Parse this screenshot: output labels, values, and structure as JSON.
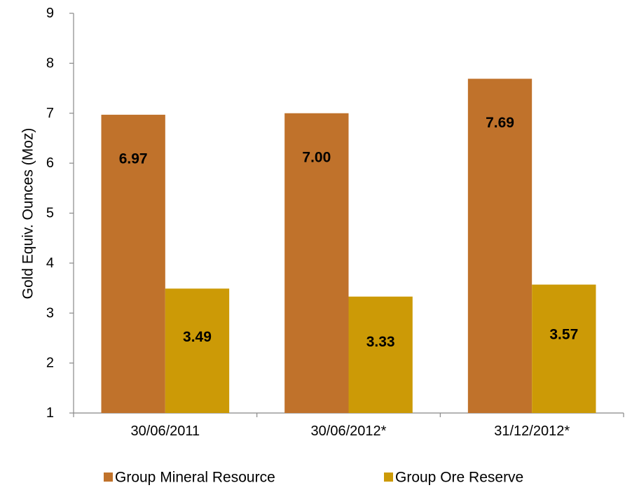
{
  "chart_data": {
    "type": "bar",
    "categories": [
      "30/06/2011",
      "30/06/2012*",
      "31/12/2012*"
    ],
    "series": [
      {
        "name": "Group Mineral Resource",
        "values": [
          6.97,
          7.0,
          7.69
        ],
        "labels": [
          "6.97",
          "7.00",
          "7.69"
        ],
        "color": "#C0722B"
      },
      {
        "name": "Group Ore Reserve",
        "values": [
          3.49,
          3.33,
          3.57
        ],
        "labels": [
          "3.49",
          "3.33",
          "3.57"
        ],
        "color": "#CC9A06"
      }
    ],
    "title": "",
    "xlabel": "",
    "ylabel": "Gold Equiv. Ounces (Moz)",
    "ylim": [
      1,
      9
    ],
    "yticks": [
      1,
      2,
      3,
      4,
      5,
      6,
      7,
      8,
      9
    ],
    "grid": false,
    "legend": "bottom"
  }
}
